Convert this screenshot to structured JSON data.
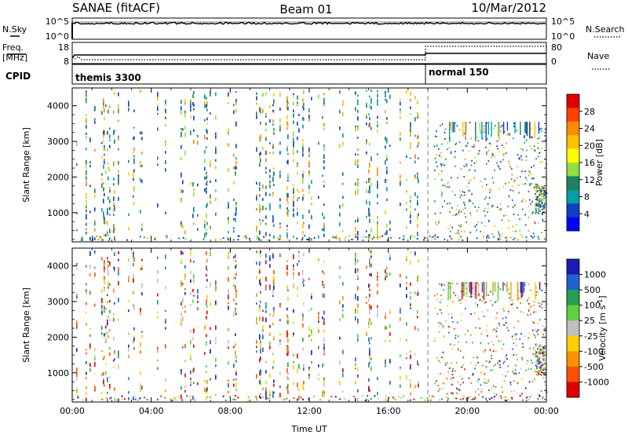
{
  "header": {
    "station": "SANAE (fitACF)",
    "beam": "Beam 01",
    "date": "10/Mar/2012"
  },
  "nsky_panel": {
    "left_label": "N.Sky",
    "right_label": "N.Search",
    "left_ticks": [
      "10^5",
      "10^0"
    ],
    "right_ticks": [
      "10^5",
      "10^0"
    ]
  },
  "freq_panel": {
    "left_label": "Freq.",
    "left_unit": "[MHz]",
    "right_label": "Nave",
    "left_ticks": [
      "18",
      "8"
    ],
    "right_ticks": [
      "80",
      "0"
    ]
  },
  "cpid_panel": {
    "label": "CPID",
    "modes": [
      {
        "name": "themis 3300",
        "start_hour": 0.0
      },
      {
        "name": "normal 150",
        "start_hour": 18.0
      }
    ]
  },
  "chart_data": [
    {
      "type": "heatmap",
      "name": "power",
      "ylabel": "Slant Range [km]",
      "ylim": [
        180,
        4500
      ],
      "yticks": [
        "1000",
        "2000",
        "3000",
        "4000"
      ],
      "xlim": [
        0,
        24
      ],
      "xticks": [
        "00:00",
        "04:00",
        "08:00",
        "12:00",
        "16:00",
        "20:00",
        "00:00"
      ],
      "colorbar": {
        "title": "Power [dB]",
        "ticks": [
          "28",
          "24",
          "20",
          "16",
          "12",
          "8",
          "4"
        ],
        "colors": [
          "#e00000",
          "#ff4000",
          "#ff8a00",
          "#ffc000",
          "#ffff00",
          "#90e040",
          "#208060",
          "#00a0a0",
          "#1040c0",
          "#0000ff"
        ]
      }
    },
    {
      "type": "heatmap",
      "name": "velocity",
      "ylabel": "Slant Range [km]",
      "ylim": [
        180,
        4500
      ],
      "yticks": [
        "1000",
        "2000",
        "3000",
        "4000"
      ],
      "xlim": [
        0,
        24
      ],
      "xticks": [
        "00:00",
        "04:00",
        "08:00",
        "12:00",
        "16:00",
        "20:00",
        "00:00"
      ],
      "xlabel": "Time UT",
      "colorbar": {
        "title": "Velocity [m s",
        "title_sup": "-1",
        "title_end": "]",
        "ticks": [
          "1000",
          "500",
          "100",
          "25",
          "-25",
          "-100",
          "-500",
          "-1000"
        ],
        "colors": [
          "#1a1ab8",
          "#2060d0",
          "#20a050",
          "#60d040",
          "#c0c0c0",
          "#ffd000",
          "#ff9000",
          "#ff5000",
          "#e00000"
        ]
      }
    }
  ],
  "colors": {
    "ground_scatter": "#808080",
    "axes": "#000000"
  }
}
